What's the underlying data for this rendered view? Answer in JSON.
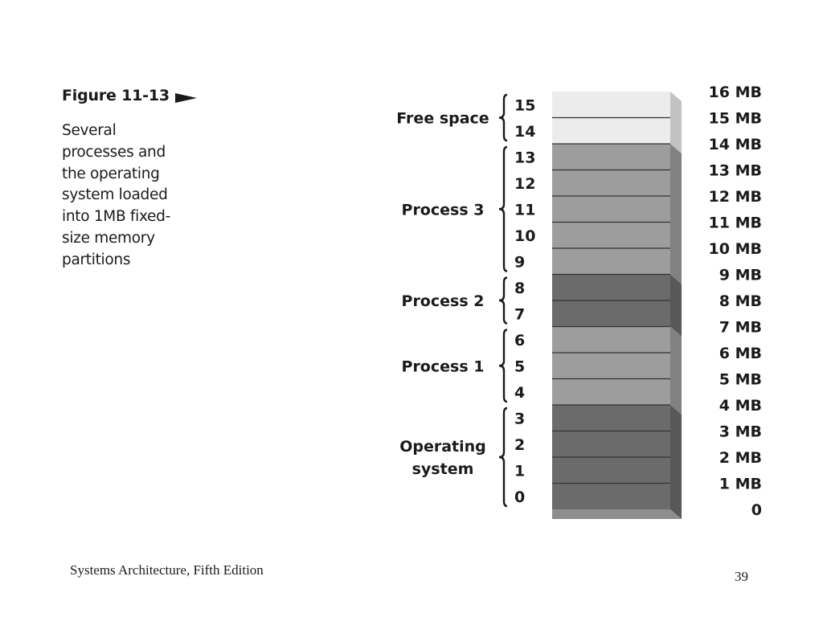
{
  "figure": {
    "title": "Figure 11-13",
    "caption_lines": [
      "Several",
      "processes and",
      "the operating",
      "system loaded",
      "into 1MB fixed-",
      "size memory",
      "partitions"
    ]
  },
  "diagram": {
    "partition_numbers": [
      "0",
      "1",
      "2",
      "3",
      "4",
      "5",
      "6",
      "7",
      "8",
      "9",
      "10",
      "11",
      "12",
      "13",
      "14",
      "15"
    ],
    "address_labels": [
      "0",
      "1 MB",
      "2 MB",
      "3 MB",
      "4 MB",
      "5 MB",
      "6 MB",
      "7 MB",
      "8 MB",
      "9 MB",
      "10 MB",
      "11 MB",
      "12 MB",
      "13 MB",
      "14 MB",
      "15 MB",
      "16 MB"
    ],
    "groups": [
      {
        "label_lines": [
          "Operating",
          "system"
        ],
        "from": 0,
        "to": 3,
        "color": "#6b6b6b"
      },
      {
        "label_lines": [
          "Process 1"
        ],
        "from": 4,
        "to": 6,
        "color": "#9d9d9d"
      },
      {
        "label_lines": [
          "Process 2"
        ],
        "from": 7,
        "to": 8,
        "color": "#6b6b6b"
      },
      {
        "label_lines": [
          "Process 3"
        ],
        "from": 9,
        "to": 13,
        "color": "#9d9d9d"
      },
      {
        "label_lines": [
          "Free space"
        ],
        "from": 14,
        "to": 15,
        "color": "#ececec"
      }
    ]
  },
  "footer": {
    "left": "Systems Architecture, Fifth Edition",
    "page": "39"
  }
}
